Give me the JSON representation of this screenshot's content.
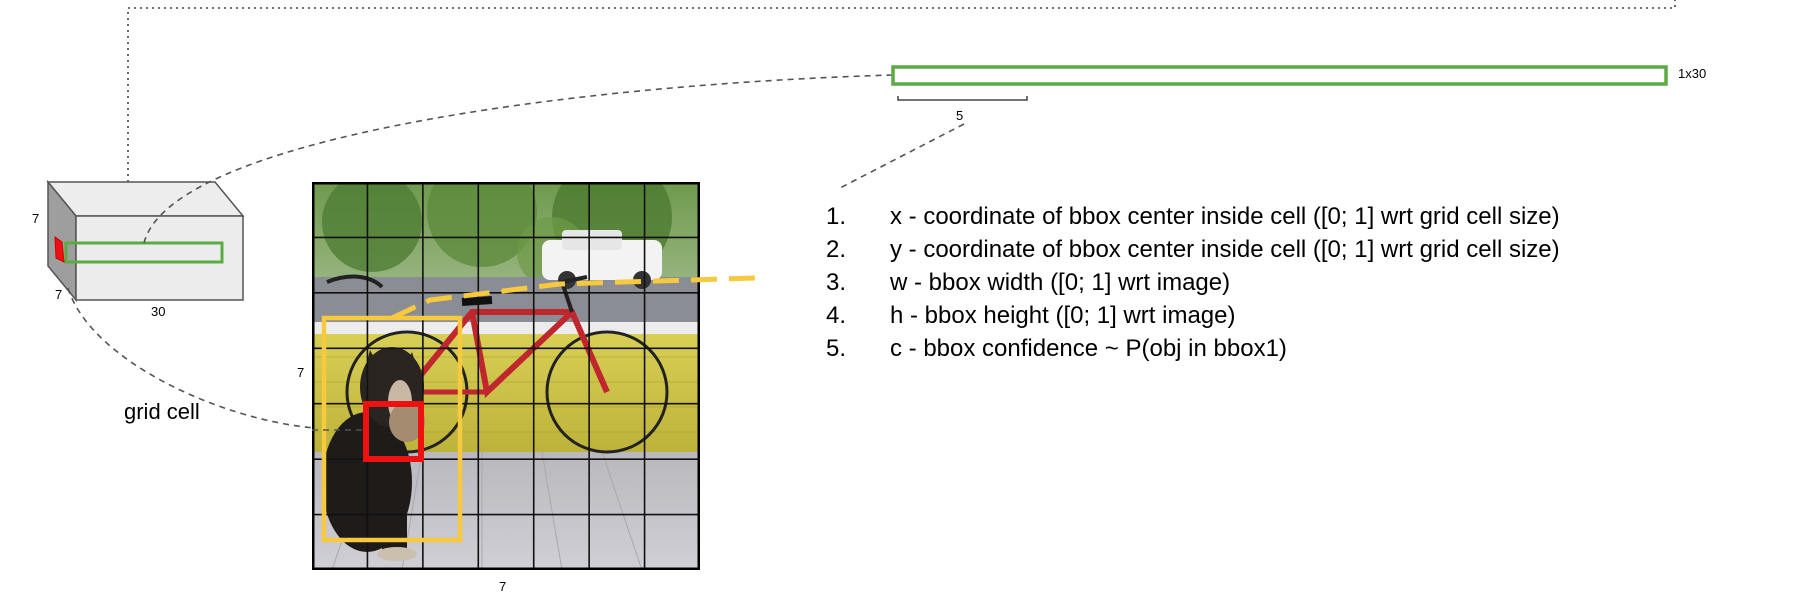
{
  "diagram": {
    "tensor": {
      "depth_label": "7",
      "height_label": "7",
      "width_label": "30"
    },
    "grid_cell_label": "grid cell",
    "vector": {
      "size_label": "1x30",
      "segment_label": "5"
    },
    "image_grid": {
      "rows": 7,
      "cols": 7,
      "left_label": "7",
      "bottom_label": "7"
    },
    "bbox_params": [
      {
        "num": "1.",
        "text": "x - coordinate of bbox center inside cell ([0; 1] wrt grid cell size)"
      },
      {
        "num": "2.",
        "text": "y - coordinate of bbox center inside cell ([0; 1] wrt grid cell size)"
      },
      {
        "num": "3.",
        "text": "w - bbox width ([0; 1] wrt image)"
      },
      {
        "num": "4.",
        "text": "h - bbox height ([0; 1] wrt image)"
      },
      {
        "num": "5.",
        "text": "c - bbox confidence ~ P(obj in bbox1)"
      }
    ],
    "colors": {
      "vector_green": "#5aab41",
      "bbox_yellow": "#f7c93e",
      "cell_red": "#ee1111",
      "dashed_gray": "#555555"
    }
  }
}
